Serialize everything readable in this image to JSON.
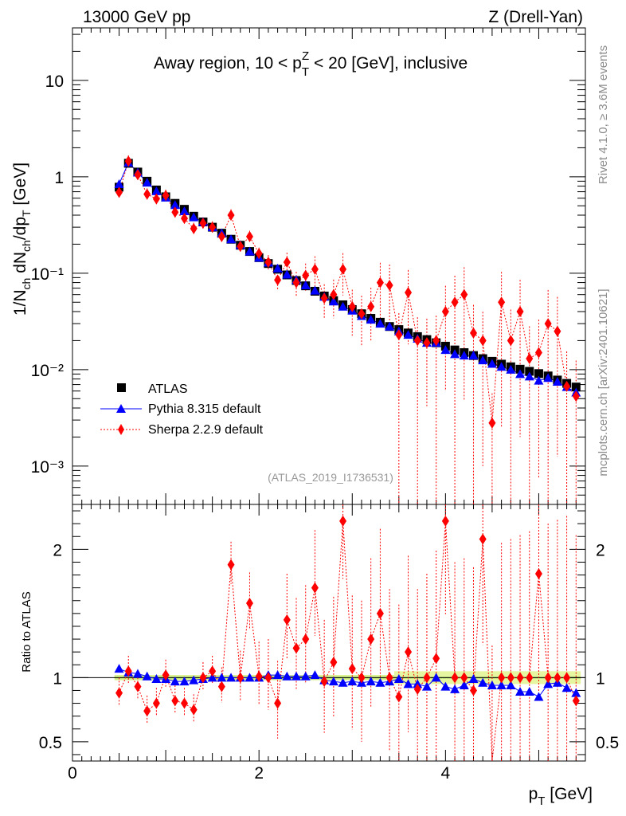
{
  "header": {
    "left": "13000 GeV pp",
    "right": "Z (Drell-Yan)"
  },
  "side_labels": {
    "rivet": "Rivet 4.1.0, ≥ 3.6M events",
    "source": "mcplots.cern.ch [arXiv:2401.10621]"
  },
  "chart_data": {
    "type": "scatter",
    "title": "Away region, 10 < p_T^Z < 20 [GeV], inclusive",
    "title_parts": {
      "pre": "Away region, 10 < p",
      "sup": "Z",
      "sub": "T",
      "post": " < 20 [GeV], inclusive"
    },
    "analysis_id": "(ATLAS_2019_I1736531)",
    "xlabel": "p_T [GeV]",
    "xlabel_parts": {
      "pre": "p",
      "sub": "T",
      "post": " [GeV]"
    },
    "ylabel_main": "1/N_ch dN_ch/dp_T [GeV]",
    "ylabel_ratio": "Ratio to ATLAS",
    "xlim": [
      0,
      5.5
    ],
    "ylim_main": [
      0.0004,
      35
    ],
    "ylim_ratio": [
      0.35,
      2.35
    ],
    "y_scale_main": "log",
    "x_ticks": [
      "0",
      "2",
      "4"
    ],
    "main_y_ticks": [
      "10",
      "1",
      "10⁻¹",
      "10⁻²",
      "10⁻³"
    ],
    "ratio_y_ticks": [
      "2",
      "1",
      "0.5"
    ],
    "legend_position": "bottom-left",
    "x": [
      0.5,
      0.6,
      0.7,
      0.8,
      0.9,
      1.0,
      1.1,
      1.2,
      1.3,
      1.4,
      1.5,
      1.6,
      1.7,
      1.8,
      1.9,
      2.0,
      2.1,
      2.2,
      2.3,
      2.4,
      2.5,
      2.6,
      2.7,
      2.8,
      2.9,
      3.0,
      3.1,
      3.2,
      3.3,
      3.4,
      3.5,
      3.6,
      3.7,
      3.8,
      3.9,
      4.0,
      4.1,
      4.2,
      4.3,
      4.4,
      4.5,
      4.6,
      4.7,
      4.8,
      4.9,
      5.0,
      5.1,
      5.2,
      5.3,
      5.4
    ],
    "series": [
      {
        "name": "ATLAS",
        "color": "#000000",
        "marker": "square",
        "values": [
          0.78,
          1.38,
          1.12,
          0.9,
          0.73,
          0.62,
          0.53,
          0.46,
          0.39,
          0.34,
          0.3,
          0.26,
          0.225,
          0.195,
          0.168,
          0.145,
          0.126,
          0.11,
          0.096,
          0.084,
          0.074,
          0.065,
          0.058,
          0.052,
          0.047,
          0.042,
          0.038,
          0.034,
          0.031,
          0.028,
          0.026,
          0.024,
          0.022,
          0.0205,
          0.019,
          0.0175,
          0.016,
          0.015,
          0.014,
          0.013,
          0.0122,
          0.0114,
          0.0107,
          0.0101,
          0.0096,
          0.0091,
          0.0086,
          0.0078,
          0.0072,
          0.0066
        ]
      },
      {
        "name": "Pythia 8.315 default",
        "color": "#0000ff",
        "marker": "triangle",
        "values": [
          0.84,
          1.4,
          1.11,
          0.87,
          0.71,
          0.61,
          0.51,
          0.44,
          0.38,
          0.34,
          0.3,
          0.26,
          0.225,
          0.196,
          0.168,
          0.145,
          0.129,
          0.112,
          0.097,
          0.085,
          0.075,
          0.066,
          0.057,
          0.051,
          0.045,
          0.041,
          0.036,
          0.033,
          0.03,
          0.028,
          0.025,
          0.023,
          0.021,
          0.019,
          0.019,
          0.016,
          0.0145,
          0.014,
          0.014,
          0.0125,
          0.0115,
          0.0107,
          0.01,
          0.009,
          0.0085,
          0.0077,
          0.0082,
          0.0075,
          0.0066,
          0.0058
        ],
        "ratio": [
          1.07,
          1.04,
          1.03,
          1.01,
          0.99,
          0.99,
          0.97,
          0.97,
          0.98,
          0.99,
          1.0,
          1.0,
          1.0,
          1.0,
          1.0,
          1.0,
          1.02,
          1.02,
          1.01,
          1.01,
          1.01,
          1.02,
          0.98,
          0.97,
          0.96,
          0.97,
          0.96,
          0.97,
          0.96,
          0.97,
          0.99,
          0.95,
          0.95,
          0.93,
          1.0,
          0.93,
          0.91,
          0.94,
          0.99,
          0.96,
          0.94,
          0.94,
          0.94,
          0.89,
          0.89,
          0.85,
          0.95,
          0.96,
          0.92,
          0.88
        ]
      },
      {
        "name": "Sherpa 2.2.9 default",
        "color": "#ff0000",
        "marker": "diamond",
        "values": [
          0.69,
          1.45,
          1.05,
          0.66,
          0.59,
          0.64,
          0.43,
          0.37,
          0.29,
          0.33,
          0.3,
          0.24,
          0.4,
          0.19,
          0.24,
          0.16,
          0.13,
          0.085,
          0.13,
          0.08,
          0.095,
          0.11,
          0.055,
          0.06,
          0.11,
          0.045,
          0.038,
          0.045,
          0.08,
          0.075,
          0.023,
          0.063,
          0.02,
          0.019,
          0.02,
          0.04,
          0.05,
          0.06,
          0.024,
          0.02,
          0.0028,
          0.05,
          0.02,
          0.04,
          0.013,
          0.015,
          0.03,
          0.025,
          0.0067,
          0.0053
        ],
        "ratio": [
          0.88,
          1.05,
          0.93,
          0.74,
          0.8,
          1.02,
          0.82,
          0.8,
          0.75,
          1.0,
          1.05,
          0.93,
          1.88,
          1.0,
          1.58,
          1.01,
          1.0,
          0.8,
          1.45,
          1.23,
          1.3,
          1.7,
          0.97,
          1.12,
          2.22,
          1.07,
          1.0,
          1.3,
          1.5,
          1.0,
          0.85,
          1.2,
          0.91,
          1.0,
          1.15,
          2.22,
          1.0,
          1.0,
          0.9,
          2.08,
          0.23,
          1.0,
          1.0,
          1.0,
          1.0,
          1.81,
          1.0,
          1.0,
          1.0,
          0.82
        ]
      }
    ]
  }
}
